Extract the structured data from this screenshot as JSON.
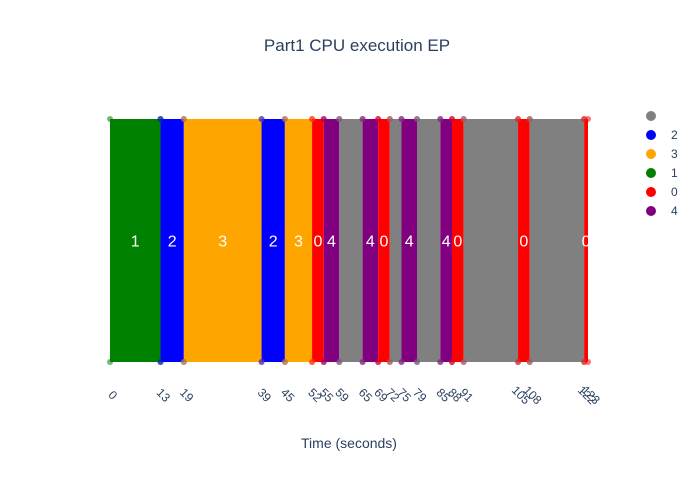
{
  "chart_data": {
    "type": "gantt",
    "title": "Part1 CPU execution EP",
    "xlabel": "Time (seconds)",
    "ylabel": "",
    "xlim": [
      0,
      123
    ],
    "colors": {
      "": "#808080",
      "0": "#ff0000",
      "1": "#008000",
      "2": "#0000ff",
      "3": "#ffa500",
      "4": "#800080"
    },
    "legend": {
      "placement": "right",
      "entries": [
        "",
        "2",
        "3",
        "1",
        "0",
        "4"
      ]
    },
    "segments": [
      {
        "process": "1",
        "start": 0,
        "end": 13,
        "label": "1"
      },
      {
        "process": "2",
        "start": 13,
        "end": 19,
        "label": "2"
      },
      {
        "process": "3",
        "start": 19,
        "end": 39,
        "label": "3"
      },
      {
        "process": "2",
        "start": 39,
        "end": 45,
        "label": "2"
      },
      {
        "process": "3",
        "start": 45,
        "end": 52,
        "label": "3"
      },
      {
        "process": "0",
        "start": 52,
        "end": 55,
        "label": "0"
      },
      {
        "process": "4",
        "start": 55,
        "end": 59,
        "label": "4"
      },
      {
        "process": "",
        "start": 59,
        "end": 65,
        "label": ""
      },
      {
        "process": "4",
        "start": 65,
        "end": 69,
        "label": "4"
      },
      {
        "process": "0",
        "start": 69,
        "end": 72,
        "label": "0"
      },
      {
        "process": "",
        "start": 72,
        "end": 75,
        "label": ""
      },
      {
        "process": "4",
        "start": 75,
        "end": 79,
        "label": "4"
      },
      {
        "process": "",
        "start": 79,
        "end": 85,
        "label": ""
      },
      {
        "process": "4",
        "start": 85,
        "end": 88,
        "label": "4"
      },
      {
        "process": "0",
        "start": 88,
        "end": 91,
        "label": "0"
      },
      {
        "process": "",
        "start": 91,
        "end": 105,
        "label": ""
      },
      {
        "process": "0",
        "start": 105,
        "end": 108,
        "label": "0"
      },
      {
        "process": "",
        "start": 108,
        "end": 122,
        "label": ""
      },
      {
        "process": "0",
        "start": 122,
        "end": 123,
        "label": "0"
      }
    ],
    "tick_labels": [
      "0",
      "13",
      "19",
      "39",
      "45",
      "52",
      "55",
      "59",
      "65",
      "69",
      "72",
      "75",
      "79",
      "85",
      "88",
      "91",
      "105",
      "108",
      "122",
      "123"
    ]
  }
}
